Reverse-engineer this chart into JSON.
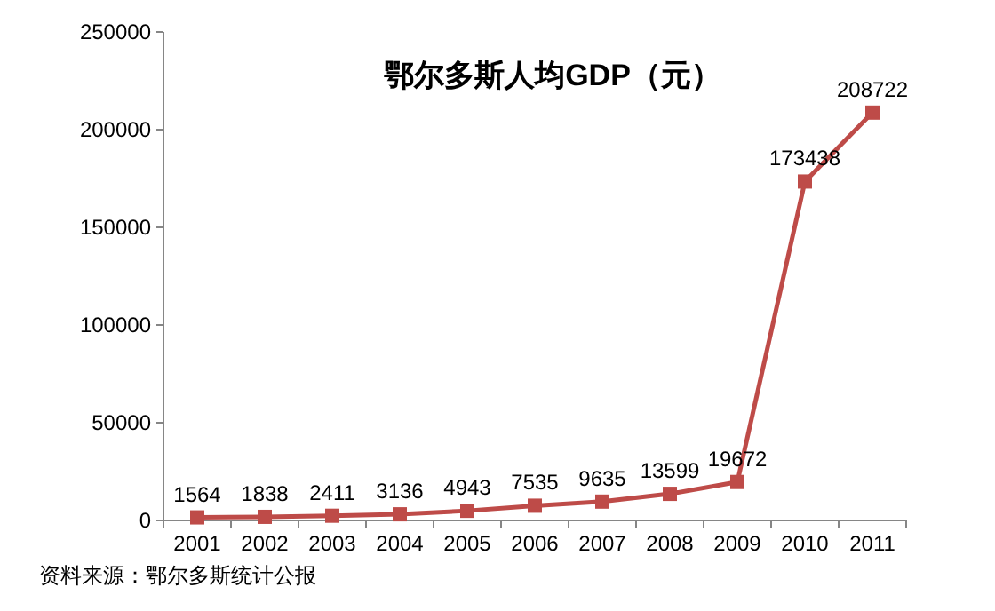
{
  "chart_data": {
    "type": "line",
    "title": "鄂尔多斯人均GDP（元）",
    "categories": [
      "2001",
      "2002",
      "2003",
      "2004",
      "2005",
      "2006",
      "2007",
      "2008",
      "2009",
      "2010",
      "2011"
    ],
    "series": [
      {
        "color": "#be4b48",
        "values": [
          1564,
          1838,
          2411,
          3136,
          4943,
          7535,
          9635,
          13599,
          19672,
          173438,
          208722
        ]
      }
    ],
    "ylim": [
      0,
      250000
    ],
    "yticks": [
      0,
      50000,
      100000,
      150000,
      200000,
      250000
    ],
    "data_labels": true,
    "marker": "square",
    "annotations": [
      "资料来源：鄂尔多斯统计公报"
    ]
  }
}
